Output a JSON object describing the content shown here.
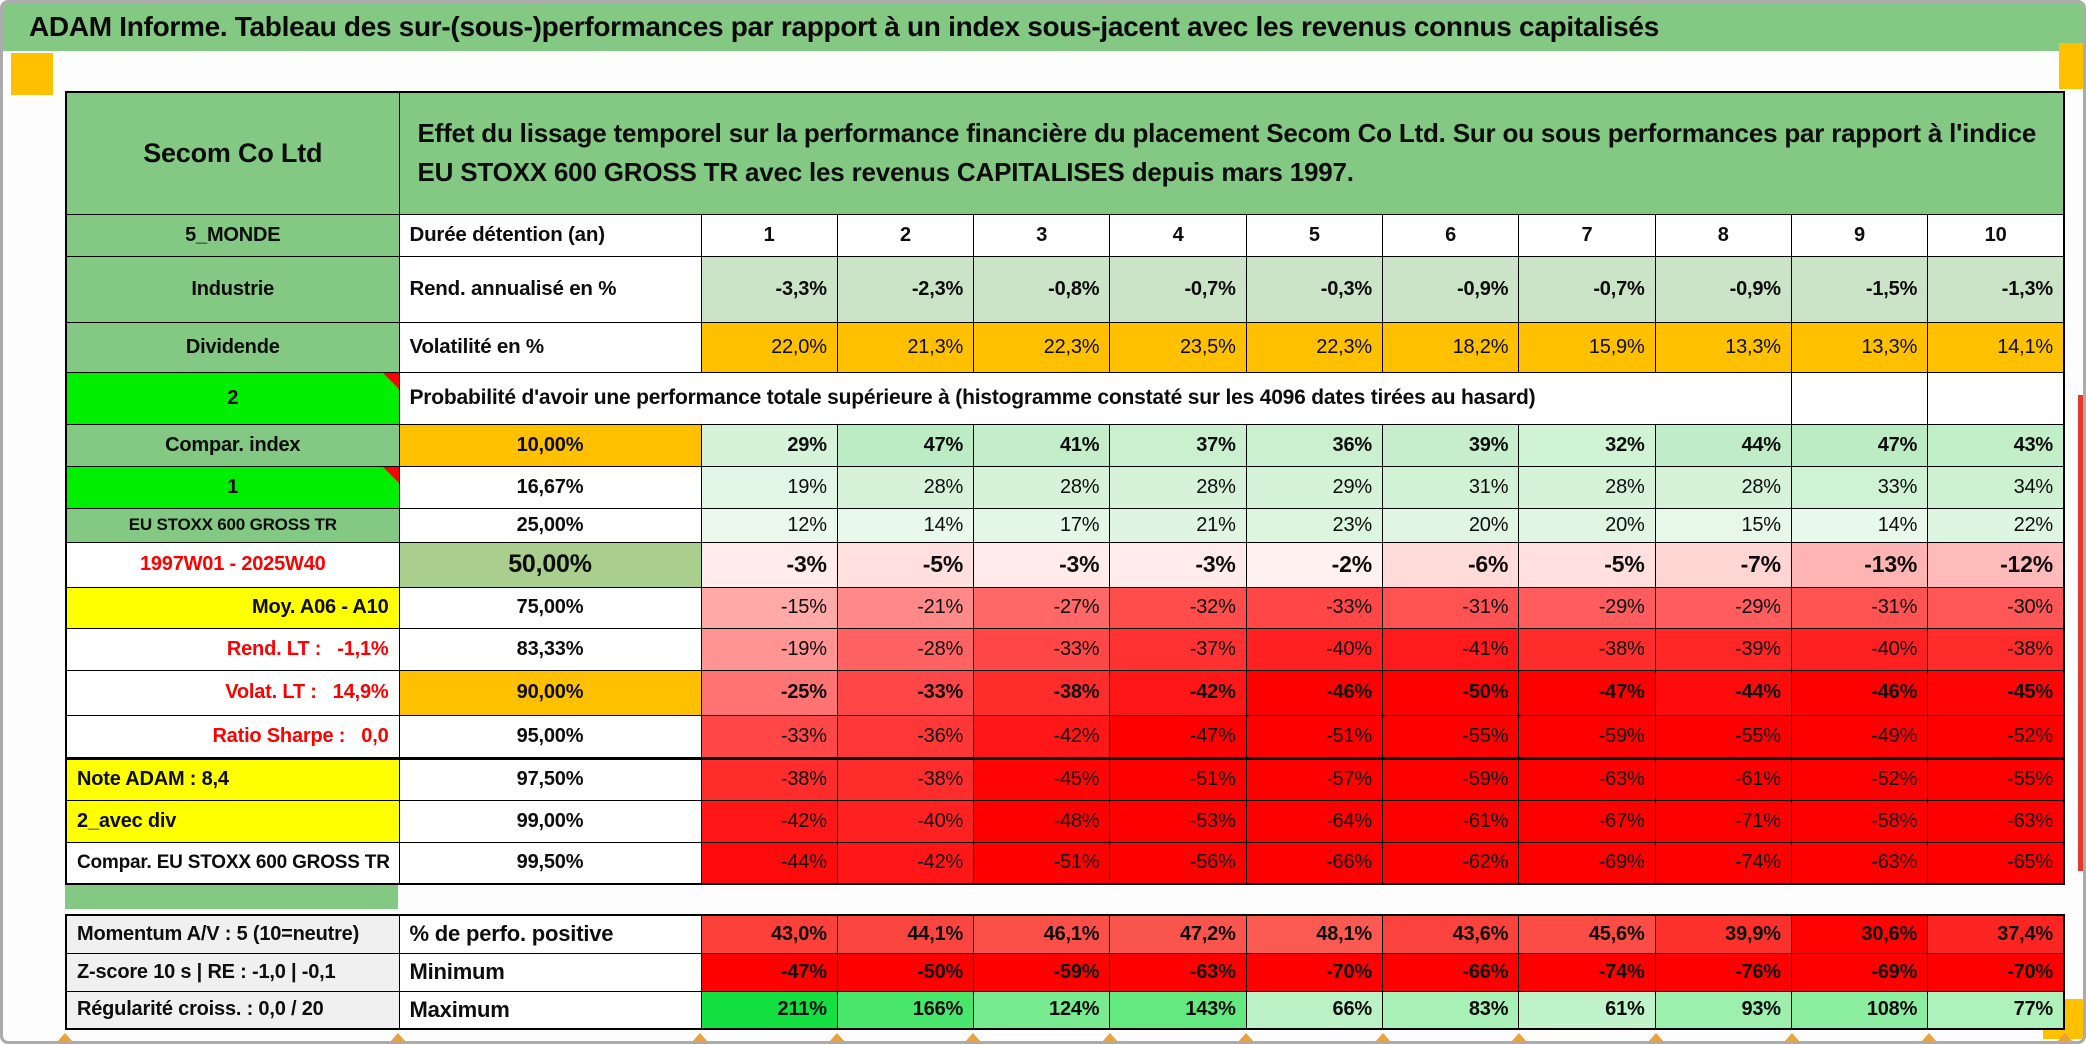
{
  "title": "ADAM Informe. Tableau des sur-(sous-)performances par rapport à un index sous-jacent avec les revenus connus capitalisés",
  "header": {
    "company": "Secom Co Ltd",
    "description": "Effet du lissage temporel sur la performance financière du placement Secom Co Ltd. Sur ou sous performances par rapport à l'indice EU STOXX 600 GROSS TR avec les revenus CAPITALISES depuis mars 1997."
  },
  "colors": {
    "green": "#83C983",
    "bright_green": "#00EF00",
    "orange": "#FFC000",
    "yellow": "#FFFF00",
    "mid_green": "#A9CE8E",
    "light_green_row": "#CBE3C6",
    "label_gray": "#F0F0F0",
    "red": "#FF0000",
    "caret_orange": "#E8A33D",
    "edge_red_strip": "#E23B2E"
  },
  "top_rows": [
    {
      "label1": "5_MONDE",
      "label2": "Durée détention (an)",
      "values": [
        1,
        2,
        3,
        4,
        5,
        6,
        7,
        8,
        9,
        10
      ],
      "format": "plain",
      "scale": "none",
      "bold": true
    },
    {
      "label1": "Industrie",
      "label2": "Rend. annualisé en %",
      "values": [
        -3.3,
        -2.3,
        -0.8,
        -0.7,
        -0.3,
        -0.9,
        -0.7,
        -0.9,
        -1.5,
        -1.3
      ],
      "format": "dec1",
      "scale": "flat-lightgreen",
      "bold": true
    },
    {
      "label1": "Dividende",
      "label2": "Volatilité en %",
      "values": [
        22.0,
        21.3,
        22.3,
        23.5,
        22.3,
        18.2,
        15.9,
        13.3,
        13.3,
        14.1
      ],
      "format": "dec1",
      "scale": "flat-orange",
      "bold": false
    }
  ],
  "prob_header": {
    "left_label": "2",
    "text": "Probabilité d'avoir une performance totale supérieure à (histogramme constaté sur les 4096 dates tirées au hasard)"
  },
  "prob_rows": [
    {
      "label": "Compar. index",
      "label_style": "green",
      "triangle": false,
      "threshold": "10,00%",
      "threshold_style": "orange",
      "bold": true,
      "big": false,
      "scale": "green-prob",
      "values": [
        29,
        47,
        41,
        37,
        36,
        39,
        32,
        44,
        47,
        43
      ]
    },
    {
      "label": "1",
      "label_style": "bright",
      "triangle": true,
      "threshold": "16,67%",
      "threshold_style": "white",
      "bold": false,
      "big": false,
      "scale": "green-prob",
      "values": [
        19,
        28,
        28,
        28,
        29,
        31,
        28,
        28,
        33,
        34
      ]
    },
    {
      "label": "EU STOXX 600 GROSS TR",
      "label_style": "green-small",
      "triangle": false,
      "threshold": "25,00%",
      "threshold_style": "white",
      "bold": false,
      "big": false,
      "scale": "green-prob",
      "values": [
        12,
        14,
        17,
        21,
        23,
        20,
        20,
        15,
        14,
        22
      ]
    },
    {
      "label": "1997W01 - 2025W40",
      "label_style": "white-red",
      "triangle": false,
      "threshold": "50,00%",
      "threshold_style": "midgreen",
      "bold": true,
      "big": true,
      "scale": "red-neg",
      "values": [
        -3,
        -5,
        -3,
        -3,
        -2,
        -6,
        -5,
        -7,
        -13,
        -12
      ]
    },
    {
      "label": "Moy. A06 - A10",
      "label_style": "yellow-right",
      "triangle": false,
      "threshold": "75,00%",
      "threshold_style": "white",
      "bold": false,
      "big": false,
      "scale": "red-neg",
      "values": [
        -15,
        -21,
        -27,
        -32,
        -33,
        -31,
        -29,
        -29,
        -31,
        -30
      ]
    },
    {
      "label": "Rend. LT :   -1,1%",
      "label_style": "white-red-right",
      "triangle": false,
      "threshold": "83,33%",
      "threshold_style": "white",
      "bold": false,
      "big": false,
      "scale": "red-neg",
      "values": [
        -19,
        -28,
        -33,
        -37,
        -40,
        -41,
        -38,
        -39,
        -40,
        -38
      ]
    },
    {
      "label": "Volat. LT :   14,9%",
      "label_style": "white-red-right",
      "triangle": false,
      "threshold": "90,00%",
      "threshold_style": "orange",
      "bold": true,
      "big": false,
      "scale": "red-neg",
      "values": [
        -25,
        -33,
        -38,
        -42,
        -46,
        -50,
        -47,
        -44,
        -46,
        -45
      ]
    },
    {
      "label": "Ratio Sharpe :   0,0",
      "label_style": "white-red-right",
      "triangle": false,
      "threshold": "95,00%",
      "threshold_style": "white",
      "bold": false,
      "big": false,
      "scale": "red-neg",
      "values": [
        -33,
        -36,
        -42,
        -47,
        -51,
        -55,
        -59,
        -55,
        -49,
        -52
      ]
    },
    {
      "label": "Note ADAM : 8,4",
      "label_style": "yellow-left",
      "triangle": false,
      "threshold": "97,50%",
      "threshold_style": "white",
      "bold": false,
      "big": false,
      "scale": "red-neg",
      "thick_top": true,
      "values": [
        -38,
        -38,
        -45,
        -51,
        -57,
        -59,
        -63,
        -61,
        -52,
        -55
      ]
    },
    {
      "label": "2_avec div",
      "label_style": "yellow-left",
      "triangle": false,
      "threshold": "99,00%",
      "threshold_style": "white",
      "bold": false,
      "big": false,
      "scale": "red-neg",
      "values": [
        -42,
        -40,
        -48,
        -53,
        -64,
        -61,
        -67,
        -71,
        -58,
        -63
      ]
    },
    {
      "label": "Compar. EU STOXX 600 GROSS TR",
      "label_style": "white-small",
      "triangle": false,
      "threshold": "99,50%",
      "threshold_style": "white",
      "bold": false,
      "big": false,
      "scale": "red-neg",
      "values": [
        -44,
        -42,
        -51,
        -56,
        -66,
        -62,
        -69,
        -74,
        -63,
        -65
      ]
    }
  ],
  "bottom_rows": [
    {
      "label1": "Momentum A/V : 5 (10=neutre)",
      "label2": "% de perfo. positive",
      "values": [
        43.0,
        44.1,
        46.1,
        47.2,
        48.1,
        43.6,
        45.6,
        39.9,
        30.6,
        37.4
      ],
      "format": "dec1",
      "scale": "red-pctpos",
      "bold": true
    },
    {
      "label1": "Z-score 10 s | RE : -1,0 | -0,1",
      "label2": "Minimum",
      "values": [
        -47,
        -50,
        -59,
        -63,
        -70,
        -66,
        -74,
        -76,
        -69,
        -70
      ],
      "format": "int",
      "scale": "red-neg",
      "bold": true
    },
    {
      "label1": "Régularité croiss. : 0,0 / 20",
      "label2": "Maximum",
      "values": [
        211,
        166,
        124,
        143,
        66,
        83,
        61,
        93,
        108,
        77
      ],
      "format": "int",
      "scale": "green-max",
      "bold": true
    }
  ]
}
